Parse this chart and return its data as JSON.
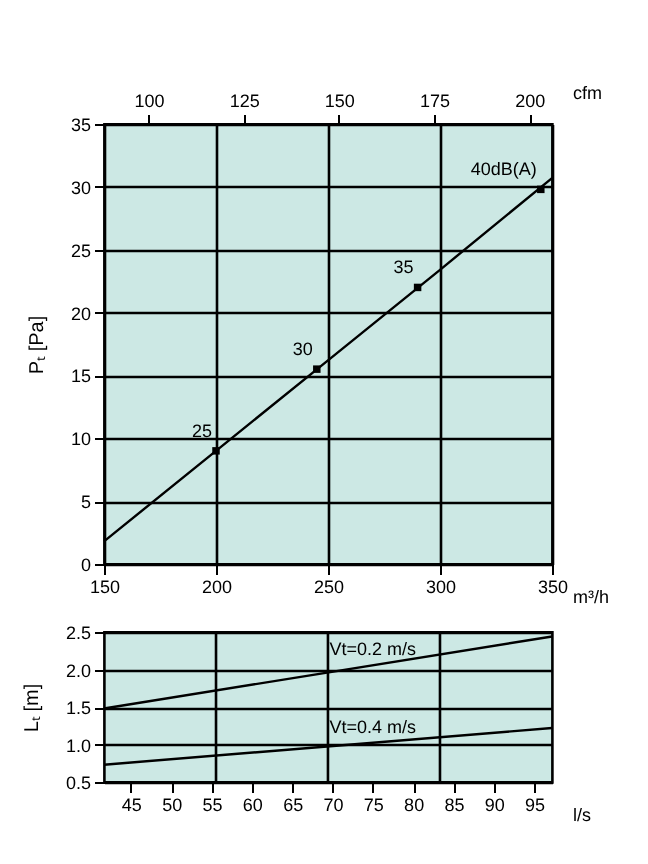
{
  "chart_data": [
    {
      "type": "line",
      "xlabel": "m³/h",
      "ylabel": "Pₜ [Pa]",
      "x2label": "cfm",
      "xlim": [
        150,
        350
      ],
      "xticks": [
        150,
        200,
        250,
        300,
        350
      ],
      "ylim": [
        0,
        35
      ],
      "yticks": [
        0,
        5,
        10,
        15,
        20,
        25,
        30,
        35
      ],
      "x2lim": [
        88.29,
        206.0
      ],
      "x2ticks": [
        100,
        125,
        150,
        175,
        200
      ],
      "grid": true,
      "series": [
        {
          "type": "line",
          "color": "#000000",
          "x": [
            150,
            200,
            250,
            300,
            350
          ],
          "values": [
            1.8,
            9,
            16.2,
            23.4,
            30.7
          ]
        },
        {
          "type": "scatter",
          "marker": "square",
          "color": "#000000",
          "x": [
            200,
            245,
            290,
            345
          ],
          "values": [
            9,
            15.5,
            22,
            29.8
          ]
        }
      ],
      "annotations": [
        {
          "text": "25",
          "x": 200,
          "y": 9
        },
        {
          "text": "30",
          "x": 245,
          "y": 15.5
        },
        {
          "text": "35",
          "x": 290,
          "y": 22
        },
        {
          "text": "40dB(A)",
          "x": 345,
          "y": 29.8
        }
      ]
    },
    {
      "type": "line",
      "xlabel": "l/s",
      "ylabel": "Lₜ [m]",
      "xlim": [
        41.67,
        97.22
      ],
      "xticks": [
        45,
        50,
        55,
        60,
        65,
        70,
        75,
        80,
        85,
        90,
        95
      ],
      "ylim": [
        0.5,
        2.5
      ],
      "yticks": [
        0.5,
        {
          "value": 1,
          "label": "1.0"
        },
        1.5,
        {
          "value": 2,
          "label": "2.0"
        },
        2.5
      ],
      "grid": "y",
      "ref_lines": [
        {
          "axis": "x",
          "value": 55.56,
          "color": "#000000"
        },
        {
          "axis": "x",
          "value": 69.44,
          "color": "#000000"
        },
        {
          "axis": "x",
          "value": 83.33,
          "color": "#000000"
        }
      ],
      "series": [
        {
          "name": "Vt=0.2 m/s",
          "color": "#000000",
          "x": [
            41.67,
            97.22
          ],
          "values": [
            1.48,
            2.44
          ]
        },
        {
          "name": "Vt=0.4 m/s",
          "color": "#000000",
          "x": [
            41.67,
            97.22
          ],
          "values": [
            0.73,
            1.22
          ]
        }
      ]
    }
  ]
}
